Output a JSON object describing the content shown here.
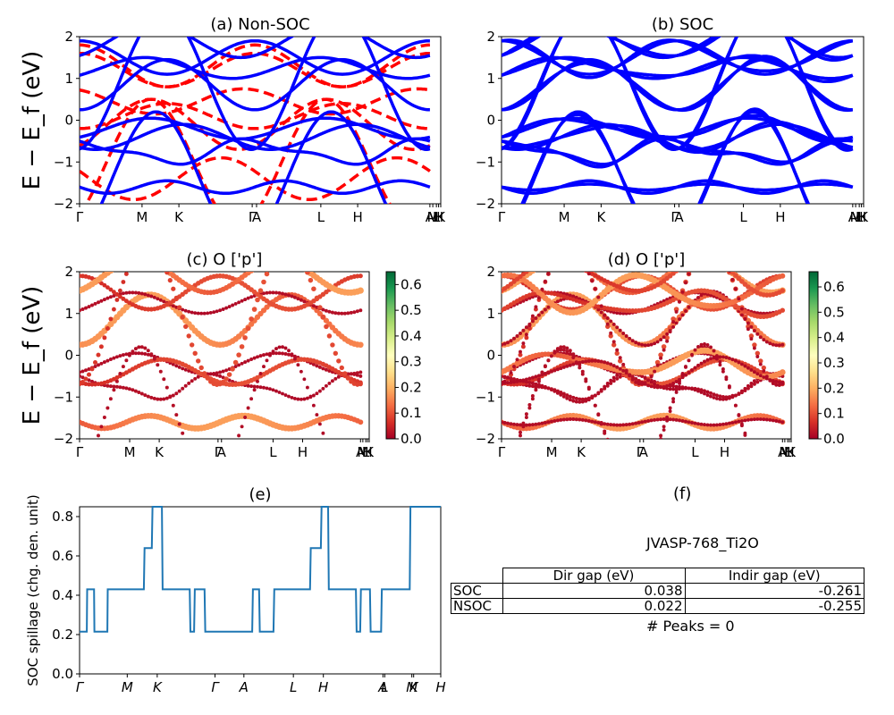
{
  "chart_data": [
    {
      "id": "a",
      "type": "line",
      "title": "(a) Non-SOC",
      "ylabel": "E − E_f (eV)",
      "ylim": [
        -2,
        2
      ],
      "yticks": [
        "2",
        "1",
        "0",
        "−1",
        "−2"
      ],
      "kpath_labels": [
        "Γ",
        "M",
        "K",
        "Γ",
        "A",
        "L",
        "H",
        "A",
        "M",
        "L",
        "H",
        "K"
      ],
      "kpath_positions": [
        0,
        0.173,
        0.275,
        0.478,
        0.49,
        0.668,
        0.77,
        0.97,
        0.978,
        0.988,
        0.994,
        1.0
      ],
      "series": [
        {
          "name": "Non-SOC bands",
          "style": "dashed",
          "color": "#ff0000"
        },
        {
          "name": "SOC bands",
          "style": "solid",
          "color": "#0000ff"
        }
      ]
    },
    {
      "id": "b",
      "type": "line",
      "title": "(b) SOC",
      "ylim": [
        -2,
        2
      ],
      "yticks": [
        "2",
        "1",
        "0",
        "−1",
        "−2"
      ],
      "kpath_labels": [
        "Γ",
        "M",
        "K",
        "Γ",
        "A",
        "L",
        "H",
        "A",
        "M",
        "L",
        "H",
        "K"
      ],
      "kpath_positions": [
        0,
        0.173,
        0.275,
        0.478,
        0.49,
        0.668,
        0.77,
        0.97,
        0.978,
        0.988,
        0.994,
        1.0
      ],
      "series": [
        {
          "name": "SOC bands",
          "style": "solid",
          "color": "#0000ff"
        }
      ]
    },
    {
      "id": "c",
      "type": "scatter",
      "title": "(c)  O ['p']",
      "ylabel": "E − E_f (eV)",
      "ylim": [
        -2,
        2
      ],
      "yticks": [
        "2",
        "1",
        "0",
        "−1",
        "−2"
      ],
      "kpath_labels": [
        "Γ",
        "M",
        "K",
        "Γ",
        "A",
        "L",
        "H",
        "A",
        "M",
        "L",
        "H",
        "K"
      ],
      "kpath_positions": [
        0,
        0.173,
        0.275,
        0.478,
        0.49,
        0.668,
        0.77,
        0.97,
        0.978,
        0.988,
        0.994,
        1.0
      ],
      "colorbar": {
        "cmap": "RdYlGn",
        "range": [
          0.0,
          0.65
        ],
        "ticks": [
          "0.0",
          "0.1",
          "0.2",
          "0.3",
          "0.4",
          "0.5",
          "0.6"
        ]
      }
    },
    {
      "id": "d",
      "type": "scatter",
      "title": "(d) O ['p']",
      "ylim": [
        -2,
        2
      ],
      "yticks": [
        "2",
        "1",
        "0",
        "−1",
        "−2"
      ],
      "kpath_labels": [
        "Γ",
        "M",
        "K",
        "Γ",
        "A",
        "L",
        "H",
        "A",
        "M",
        "L",
        "H",
        "K"
      ],
      "kpath_positions": [
        0,
        0.173,
        0.275,
        0.478,
        0.49,
        0.668,
        0.77,
        0.97,
        0.978,
        0.988,
        0.994,
        1.0
      ],
      "colorbar": {
        "cmap": "RdYlGn",
        "range": [
          0.0,
          0.66
        ],
        "ticks": [
          "0.0",
          "0.1",
          "0.2",
          "0.3",
          "0.4",
          "0.5",
          "0.6"
        ]
      }
    },
    {
      "id": "e",
      "type": "line",
      "title": "(e)",
      "ylabel": "SOC spillage (chg. den. unit)",
      "ylim": [
        0.0,
        0.85
      ],
      "yticks": [
        "0.0",
        "0.2",
        "0.4",
        "0.6",
        "0.8"
      ],
      "kpath_labels": [
        "Γ",
        "M",
        "K",
        "Γ",
        "A",
        "L",
        "H",
        "A",
        "L",
        "M",
        "K",
        "H"
      ],
      "kpath_positions": [
        0,
        0.132,
        0.215,
        0.375,
        0.455,
        0.592,
        0.675,
        0.84,
        0.845,
        0.92,
        0.925,
        1.0
      ],
      "x": [
        0,
        0.02,
        0.021,
        0.04,
        0.041,
        0.077,
        0.078,
        0.178,
        0.18,
        0.2,
        0.202,
        0.228,
        0.23,
        0.305,
        0.307,
        0.317,
        0.319,
        0.346,
        0.348,
        0.478,
        0.48,
        0.497,
        0.499,
        0.537,
        0.539,
        0.638,
        0.64,
        0.668,
        0.67,
        0.688,
        0.69,
        0.765,
        0.767,
        0.777,
        0.779,
        0.804,
        0.806,
        0.835,
        0.837,
        0.914,
        0.916,
        1.0
      ],
      "values": [
        0.215,
        0.215,
        0.43,
        0.43,
        0.215,
        0.215,
        0.43,
        0.43,
        0.64,
        0.64,
        0.85,
        0.85,
        0.43,
        0.43,
        0.215,
        0.215,
        0.43,
        0.43,
        0.215,
        0.215,
        0.43,
        0.43,
        0.215,
        0.215,
        0.43,
        0.43,
        0.64,
        0.64,
        0.85,
        0.85,
        0.43,
        0.43,
        0.215,
        0.215,
        0.43,
        0.43,
        0.215,
        0.215,
        0.43,
        0.43,
        0.85,
        0.85
      ],
      "color": "#1f77b4"
    },
    {
      "id": "f",
      "type": "table",
      "title": "(f)",
      "subtitle": "JVASP-768_Ti2O",
      "columns": [
        "",
        "Dir gap (eV)",
        "Indir gap (eV)"
      ],
      "rows": [
        [
          "SOC",
          "0.038",
          "-0.261"
        ],
        [
          "NSOC",
          "0.022",
          "-0.255"
        ]
      ],
      "footer": "# Peaks = 0"
    }
  ]
}
